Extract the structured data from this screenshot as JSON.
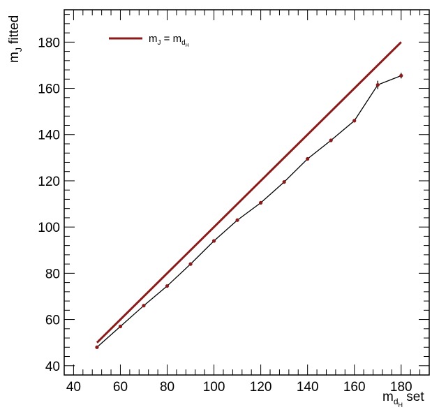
{
  "chart_data": {
    "type": "line",
    "title": "",
    "xlabel": "m",
    "xlabel_sub": "d",
    "xlabel_subsub": "H",
    "xlabel_suffix": " set",
    "ylabel": "m",
    "ylabel_sub": "J",
    "ylabel_suffix": " fitted",
    "xlim": [
      36,
      192
    ],
    "ylim": [
      36,
      194
    ],
    "xticks": [
      40,
      60,
      80,
      100,
      120,
      140,
      160,
      180
    ],
    "yticks": [
      40,
      60,
      80,
      100,
      120,
      140,
      160,
      180
    ],
    "grid": false,
    "legend_position": "top-left",
    "reference_line": {
      "label_main": "m",
      "label_sub": "J",
      "label_eq": " = m",
      "label_sub2": "d",
      "label_subsub2": "H",
      "x": [
        50,
        180
      ],
      "y": [
        50,
        180
      ],
      "color": "#8b1a1a"
    },
    "series": [
      {
        "x": [
          50,
          60,
          70,
          80,
          90,
          100,
          110,
          120,
          130,
          140,
          150,
          160,
          170,
          180
        ],
        "y": [
          48,
          57,
          66,
          74.5,
          84,
          94,
          103,
          110.5,
          119.5,
          129.5,
          137.5,
          146,
          161.5,
          165.5
        ],
        "yerr": [
          0.3,
          0.3,
          0.3,
          0.3,
          0.3,
          0.3,
          0.3,
          0.3,
          0.3,
          0.4,
          0.4,
          0.5,
          1.8,
          1.2
        ],
        "line_color": "#000000",
        "marker_color": "#8b1a1a"
      }
    ]
  }
}
